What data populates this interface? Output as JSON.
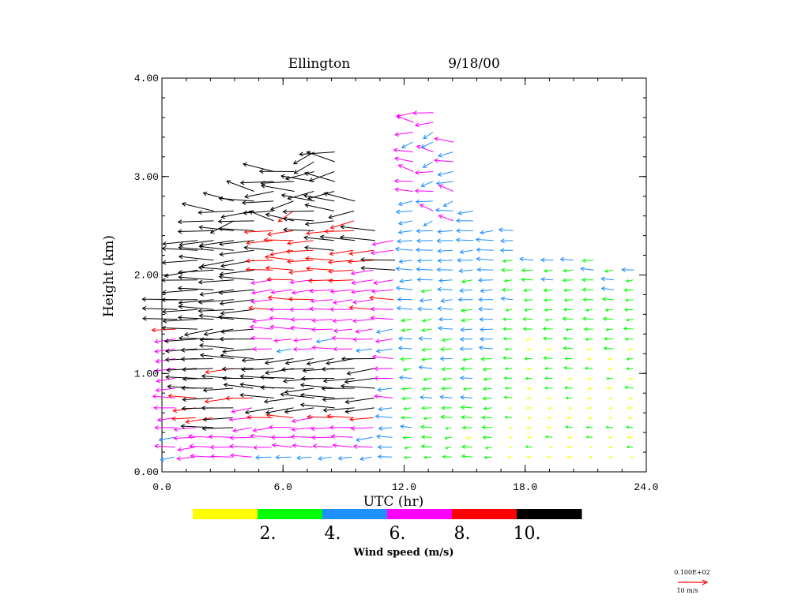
{
  "chart_data": {
    "type": "wind-profile-vector",
    "title_left": "Ellington",
    "title_right": "9/18/00",
    "xlabel": "UTC (hr)",
    "ylabel": "Height (km)",
    "xlim": [
      0,
      24
    ],
    "ylim": [
      0,
      4
    ],
    "x_ticks": [
      "0.0",
      "6.0",
      "12.0",
      "18.0",
      "24.0"
    ],
    "y_ticks": [
      "0.00",
      "1.00",
      "2.00",
      "3.00",
      "4.00"
    ],
    "colorbar": {
      "label": "Wind speed (m/s)",
      "ticks": [
        "2.",
        "4.",
        "6.",
        "8.",
        "10."
      ],
      "bins": [
        {
          "min": 0,
          "max": 2,
          "color": "#ffff00"
        },
        {
          "min": 2,
          "max": 4,
          "color": "#00ff00"
        },
        {
          "min": 4,
          "max": 6,
          "color": "#1e90ff"
        },
        {
          "min": 6,
          "max": 8,
          "color": "#ff00ff"
        },
        {
          "min": 8,
          "max": 10,
          "color": "#ff0000"
        },
        {
          "min": 10,
          "max": 14,
          "color": "#000000"
        }
      ]
    },
    "reference_vector": {
      "value_label": "0.100E+02",
      "unit_label": "10 m/s",
      "speed": 10,
      "color": "#ff0000"
    },
    "profile_times_hr": [
      0.5,
      1.5,
      2.3,
      3.3,
      4.3,
      5.3,
      6.3,
      7.3,
      8.3,
      9.3,
      10.3,
      11.3,
      12.3,
      13.3,
      14.3,
      15.3,
      16.3,
      17.3,
      18.3,
      19.3,
      20.3,
      21.3,
      22.3,
      23.3
    ],
    "profile_tops_km": [
      1.8,
      2.35,
      2.7,
      2.75,
      2.9,
      3.1,
      3.1,
      3.25,
      3.3,
      2.75,
      2.45,
      2.4,
      3.7,
      3.65,
      3.35,
      2.7,
      2.5,
      2.45,
      2.2,
      2.2,
      2.2,
      2.15,
      2.1,
      2.05
    ],
    "level_step_km": 0.1,
    "wind_field_description": "Easterly (arrows pointing west) winds throughout; speeds > 10 m/s (black) at 1-3 km before 05 UTC and a jet of 10+ m/s near 0.6-1.1 km from 05-10 UTC; weaker 2-6 m/s flow after 12 UTC with near-calm (yellow) low levels after 17 UTC."
  }
}
